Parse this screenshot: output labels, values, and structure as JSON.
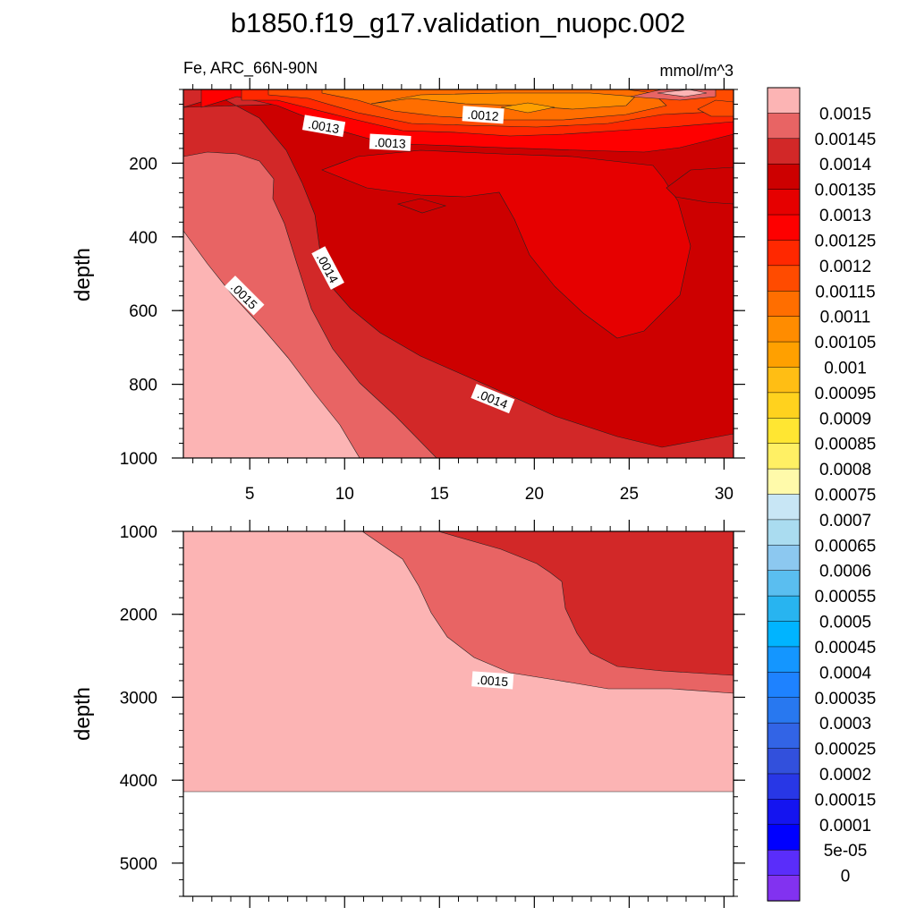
{
  "chart_data": {
    "type": "contour",
    "title": "b1850.f19_g17.validation_nuopc.002",
    "variable_label": "Fe, ARC_66N-90N",
    "units_label": "mmol/m^3",
    "ylabel": "depth",
    "x_ticks": [
      5,
      10,
      15,
      20,
      25,
      30
    ],
    "xlim": [
      1.5,
      30.5
    ],
    "upper_panel": {
      "ylim": [
        0,
        1000
      ],
      "y_ticks": [
        200,
        400,
        600,
        800,
        1000
      ],
      "contour_labels": [
        {
          "text": ".0013",
          "x": 8.9,
          "y": 100
        },
        {
          "text": ".0013",
          "x": 12.4,
          "y": 145
        },
        {
          "text": ".0012",
          "x": 17.3,
          "y": 70
        },
        {
          "text": ".0014",
          "x": 9.1,
          "y": 485
        },
        {
          "text": ".0015",
          "x": 4.7,
          "y": 560
        },
        {
          "text": ".0014",
          "x": 17.8,
          "y": 840
        }
      ]
    },
    "lower_panel": {
      "ylim": [
        1000,
        5400
      ],
      "y_ticks": [
        1000,
        2000,
        3000,
        4000,
        5000
      ],
      "contour_labels": [
        {
          "text": ".0015",
          "x": 17.8,
          "y": 2800
        }
      ]
    },
    "colorbar": {
      "labels": [
        "0.0015",
        "0.00145",
        "0.0014",
        "0.00135",
        "0.0013",
        "0.00125",
        "0.0012",
        "0.00115",
        "0.0011",
        "0.00105",
        "0.001",
        "0.00095",
        "0.0009",
        "0.00085",
        "0.0008",
        "0.00075",
        "0.0007",
        "0.00065",
        "0.0006",
        "0.00055",
        "0.0005",
        "0.00045",
        "0.0004",
        "0.00035",
        "0.0003",
        "0.00025",
        "0.0002",
        "0.00015",
        "0.0001",
        "5e-05",
        "0"
      ],
      "colors": [
        "#fcb4b4",
        "#e86464",
        "#d22828",
        "#cd0000",
        "#e60000",
        "#fe0000",
        "#ff2800",
        "#ff4b00",
        "#ff6e00",
        "#ff8c00",
        "#ffa000",
        "#ffbe14",
        "#ffd21e",
        "#ffe632",
        "#fff064",
        "#fffaaa",
        "#c8e6f5",
        "#aadcf0",
        "#8cc8f0",
        "#5abef0",
        "#28b4f0",
        "#00b4ff",
        "#1496ff",
        "#1e82ff",
        "#2878f0",
        "#3264e6",
        "#3250dc",
        "#2837e6",
        "#1414f0",
        "#0000ff",
        "#5a2dfa",
        "#8232f0"
      ]
    }
  }
}
